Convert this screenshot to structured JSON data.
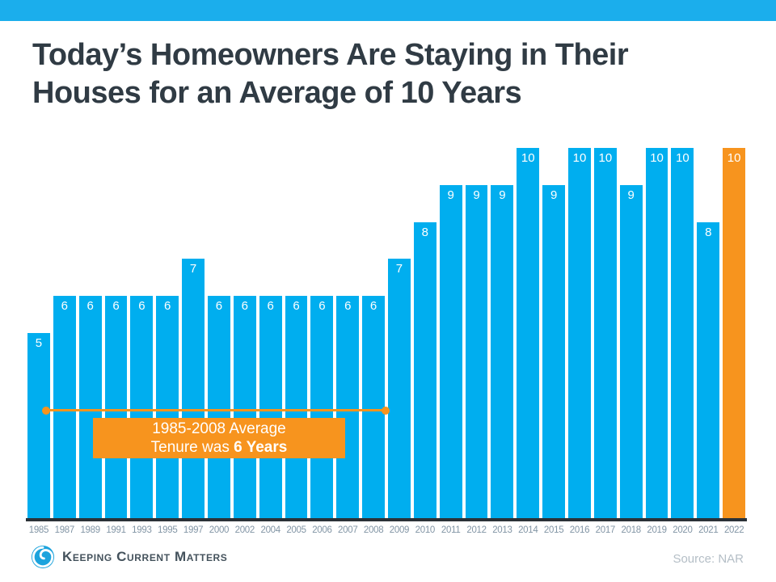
{
  "accent": {
    "top_bar_color": "#1BAEEC"
  },
  "title": {
    "line1": "Today’s Homeowners Are Staying in Their",
    "line2": "Houses for an Average of 10 Years"
  },
  "chart_data": {
    "type": "bar",
    "title": "Today’s Homeowners Are Staying in Their Houses for an Average of 10 Years",
    "xlabel": "",
    "ylabel": "",
    "ylim": [
      0,
      10
    ],
    "grid": false,
    "categories": [
      "1985",
      "1987",
      "1989",
      "1991",
      "1993",
      "1995",
      "1997",
      "2000",
      "2002",
      "2004",
      "2005",
      "2006",
      "2007",
      "2008",
      "2009",
      "2010",
      "2011",
      "2012",
      "2013",
      "2014",
      "2015",
      "2016",
      "2017",
      "2018",
      "2019",
      "2020",
      "2021",
      "2022"
    ],
    "values": [
      5,
      6,
      6,
      6,
      6,
      6,
      7,
      6,
      6,
      6,
      6,
      6,
      6,
      6,
      7,
      8,
      9,
      9,
      9,
      10,
      9,
      10,
      10,
      9,
      10,
      10,
      8,
      10
    ],
    "bar_color": "#00AEEF",
    "highlight_category": "2022",
    "highlight_color": "#F7941E",
    "value_label_color": "#FFFFFF",
    "tick_label_color": "#8295A5",
    "axis_line_color": "#2B3238",
    "annotation": {
      "line_from_category": "1985",
      "line_to_category": "2008",
      "line_color": "#F7941E",
      "box_color": "#F7941E",
      "text_color": "#FFFFFF",
      "box_line1": "1985-2008 Average",
      "box_line2_regular": "Tenure was ",
      "box_line2_bold": "6 Years"
    }
  },
  "footer": {
    "logo_text": "Keeping Current Matters",
    "logo_icon": "kcm-swirl-icon",
    "logo_color": "#1CA3DD",
    "source": "Source: NAR",
    "source_color": "#B4BEC6"
  }
}
